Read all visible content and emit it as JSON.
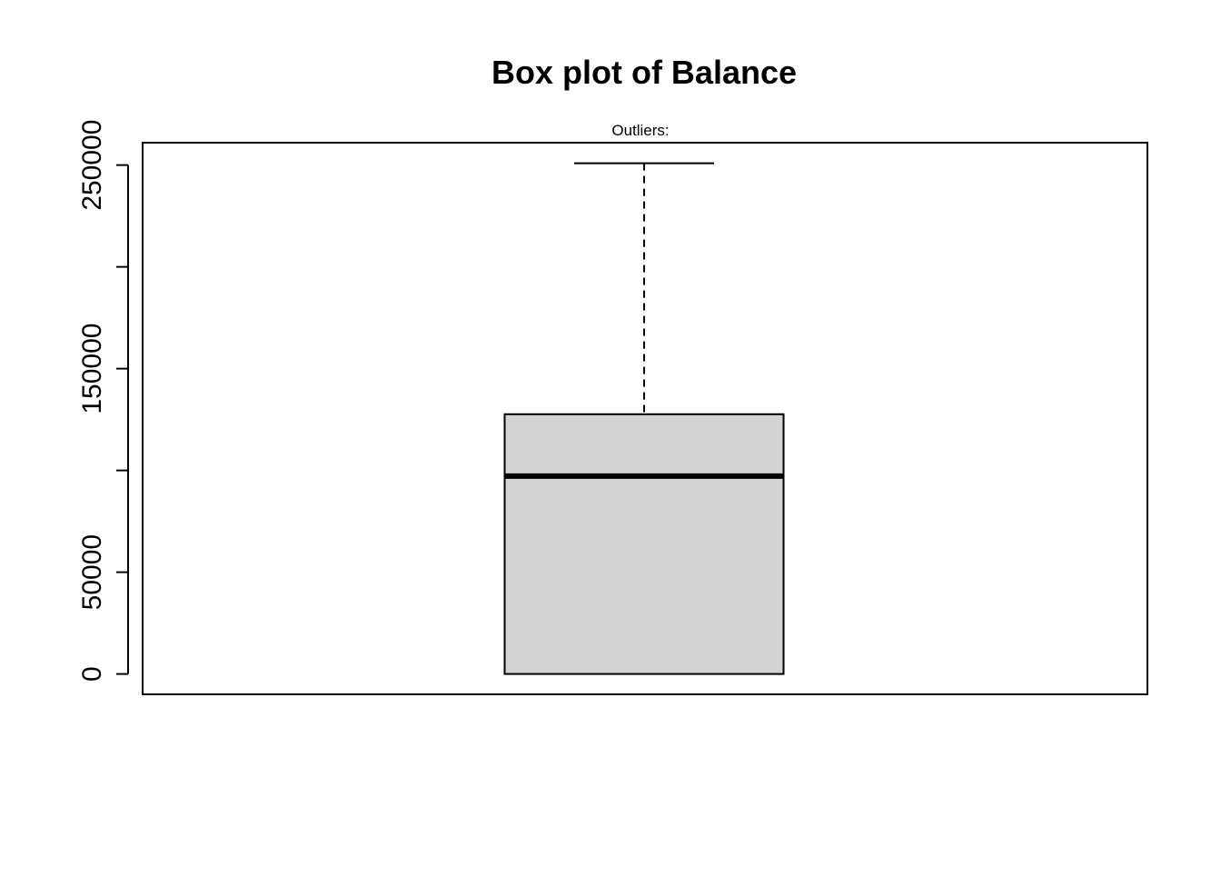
{
  "chart_data": {
    "type": "box",
    "title": "Box plot of Balance",
    "subtitle": "Outliers:",
    "xlabel": "",
    "ylabel": "",
    "ylim": [
      -10000,
      261000
    ],
    "yticks": [
      0,
      50000,
      100000,
      150000,
      200000,
      250000
    ],
    "ytick_labels": [
      "0",
      "50000",
      "",
      "150000",
      "",
      "250000"
    ],
    "series": [
      {
        "min": 0,
        "q1": 0,
        "median": 97200,
        "q3": 127600,
        "max": 250900,
        "outliers": []
      }
    ],
    "colors": {
      "box_fill": "#d3d3d3",
      "stroke": "#000000",
      "background": "#ffffff"
    },
    "grid": false,
    "legend": "none"
  }
}
